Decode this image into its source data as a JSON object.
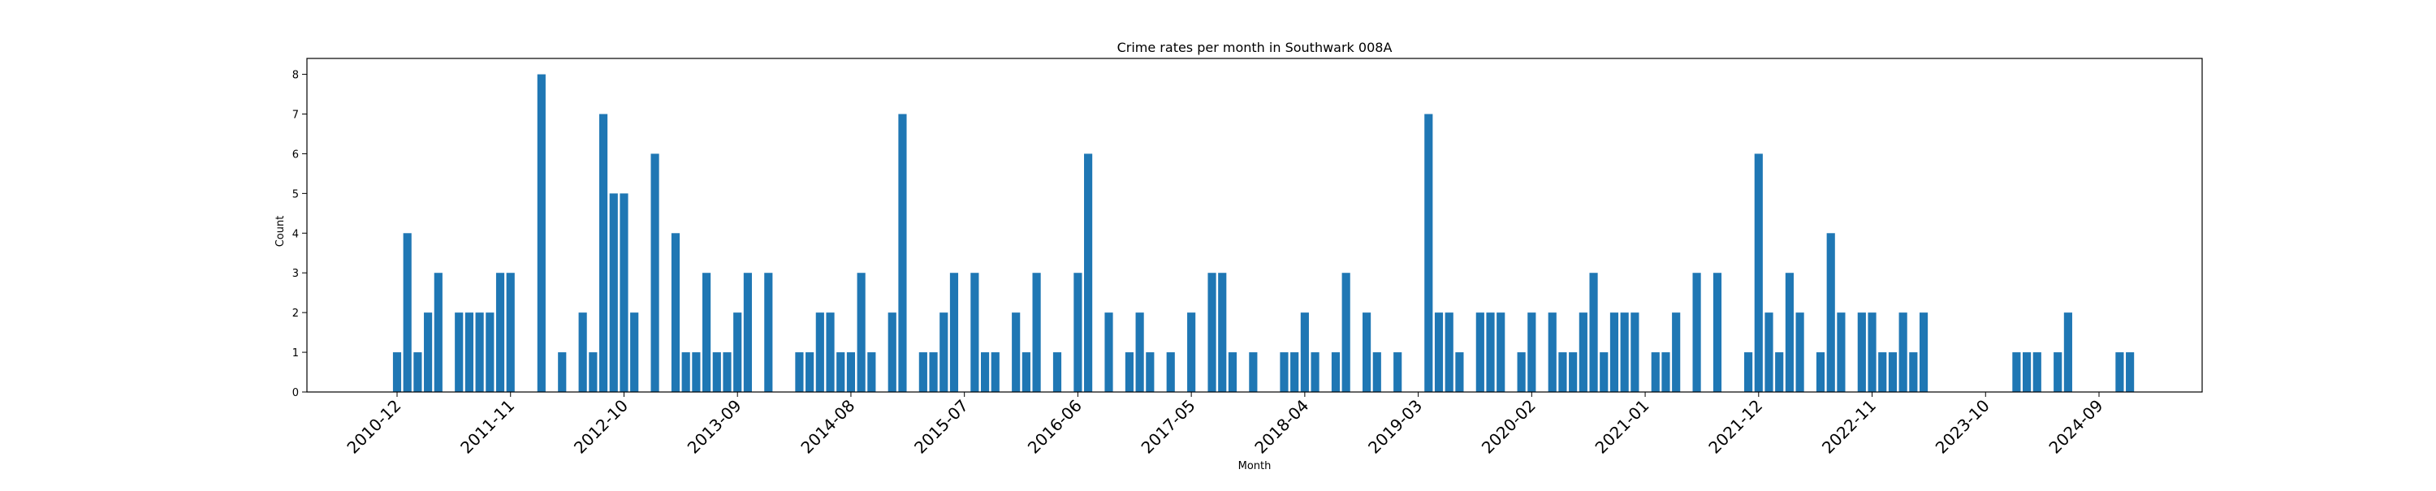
{
  "chart_data": {
    "type": "bar",
    "title": "Crime rates per month in Southwark 008A",
    "xlabel": "Month",
    "ylabel": "Count",
    "x_tick_labels": [
      "2010-12",
      "2011-11",
      "2012-10",
      "2013-09",
      "2014-08",
      "2015-07",
      "2016-06",
      "2017-05",
      "2018-04",
      "2019-03",
      "2020-02",
      "2021-01",
      "2021-12",
      "2022-11",
      "2023-10",
      "2024-09"
    ],
    "y_ticks": [
      0,
      1,
      2,
      3,
      4,
      5,
      6,
      7,
      8
    ],
    "ylim": [
      0,
      8.4
    ],
    "bar_color": "#1f77b4",
    "grid": false,
    "categories": [
      "2010-12",
      "2011-01",
      "2011-02",
      "2011-03",
      "2011-04",
      "2011-06",
      "2011-07",
      "2011-08",
      "2011-09",
      "2011-10",
      "2011-11",
      "2012-02",
      "2012-04",
      "2012-06",
      "2012-07",
      "2012-08",
      "2012-09",
      "2012-10",
      "2012-11",
      "2013-01",
      "2013-03",
      "2013-04",
      "2013-05",
      "2013-06",
      "2013-07",
      "2013-08",
      "2013-09",
      "2013-10",
      "2013-12",
      "2014-03",
      "2014-04",
      "2014-05",
      "2014-06",
      "2014-07",
      "2014-08",
      "2014-09",
      "2014-10",
      "2014-12",
      "2015-01",
      "2015-03",
      "2015-04",
      "2015-05",
      "2015-06",
      "2015-08",
      "2015-09",
      "2015-10",
      "2015-12",
      "2016-01",
      "2016-02",
      "2016-04",
      "2016-06",
      "2016-07",
      "2016-09",
      "2016-11",
      "2016-12",
      "2017-01",
      "2017-03",
      "2017-05",
      "2017-07",
      "2017-08",
      "2017-09",
      "2017-11",
      "2018-02",
      "2018-03",
      "2018-04",
      "2018-05",
      "2018-07",
      "2018-08",
      "2018-10",
      "2018-11",
      "2019-01",
      "2019-04",
      "2019-05",
      "2019-06",
      "2019-07",
      "2019-09",
      "2019-10",
      "2019-11",
      "2020-01",
      "2020-02",
      "2020-04",
      "2020-05",
      "2020-06",
      "2020-07",
      "2020-08",
      "2020-09",
      "2020-10",
      "2020-11",
      "2020-12",
      "2021-02",
      "2021-03",
      "2021-04",
      "2021-06",
      "2021-08",
      "2021-11",
      "2021-12",
      "2022-01",
      "2022-02",
      "2022-03",
      "2022-04",
      "2022-06",
      "2022-07",
      "2022-08",
      "2022-10",
      "2022-11",
      "2022-12",
      "2023-01",
      "2023-02",
      "2023-03",
      "2023-04",
      "2024-01",
      "2024-02",
      "2024-03",
      "2024-05",
      "2024-06",
      "2024-11",
      "2024-12"
    ],
    "values": [
      1,
      4,
      1,
      2,
      3,
      2,
      2,
      2,
      2,
      3,
      3,
      8,
      1,
      2,
      1,
      7,
      5,
      5,
      2,
      6,
      4,
      1,
      1,
      3,
      1,
      1,
      2,
      3,
      3,
      1,
      1,
      2,
      2,
      1,
      1,
      3,
      1,
      2,
      7,
      1,
      1,
      2,
      3,
      3,
      1,
      1,
      2,
      1,
      3,
      1,
      3,
      6,
      2,
      1,
      2,
      1,
      1,
      2,
      3,
      3,
      1,
      1,
      1,
      1,
      2,
      1,
      1,
      3,
      2,
      1,
      1,
      7,
      2,
      2,
      1,
      2,
      2,
      2,
      1,
      2,
      2,
      1,
      1,
      2,
      3,
      1,
      2,
      2,
      2,
      1,
      1,
      2,
      3,
      3,
      1,
      6,
      2,
      1,
      3,
      2,
      1,
      4,
      2,
      2,
      2,
      1,
      1,
      2,
      1,
      2,
      1,
      1,
      1,
      1,
      2,
      1,
      1
    ]
  }
}
